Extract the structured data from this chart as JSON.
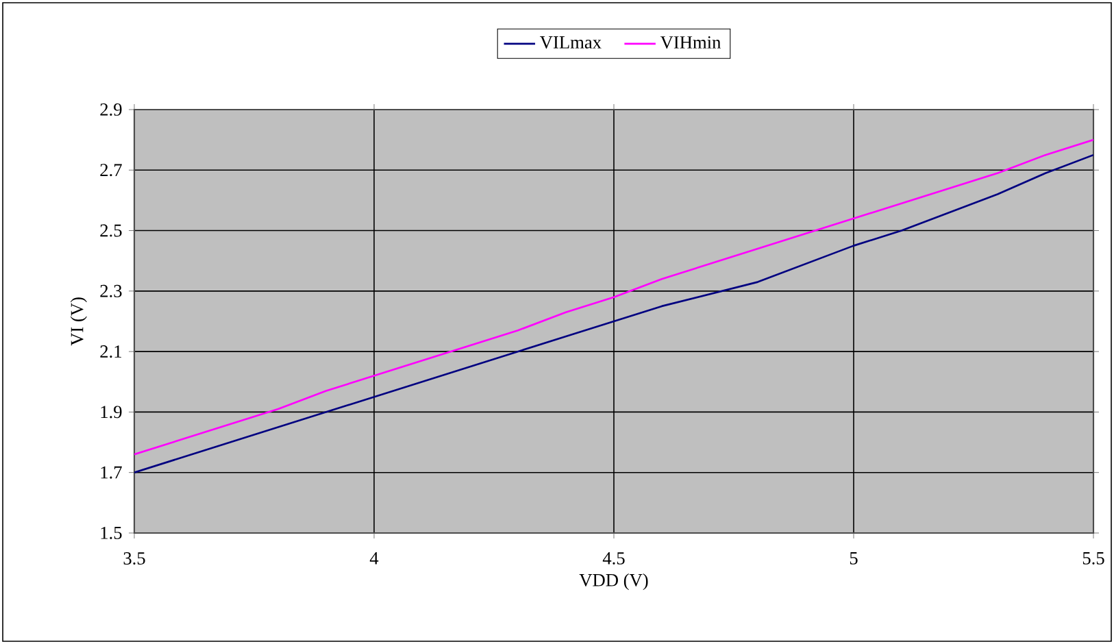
{
  "chart_data": {
    "type": "line",
    "xlabel": "VDD (V)",
    "ylabel": "VI (V)",
    "x": [
      3.5,
      3.6,
      3.7,
      3.8,
      3.9,
      4.0,
      4.1,
      4.2,
      4.3,
      4.4,
      4.5,
      4.6,
      4.7,
      4.8,
      4.9,
      5.0,
      5.1,
      5.2,
      5.3,
      5.4,
      5.5
    ],
    "series": [
      {
        "name": "VILmax",
        "color": "#000080",
        "values": [
          1.7,
          1.75,
          1.8,
          1.85,
          1.9,
          1.95,
          2.0,
          2.05,
          2.1,
          2.15,
          2.2,
          2.25,
          2.29,
          2.33,
          2.39,
          2.45,
          2.5,
          2.56,
          2.62,
          2.69,
          2.75
        ]
      },
      {
        "name": "VIHmin",
        "color": "#ff00ff",
        "values": [
          1.76,
          1.81,
          1.86,
          1.91,
          1.97,
          2.02,
          2.07,
          2.12,
          2.17,
          2.23,
          2.28,
          2.34,
          2.39,
          2.44,
          2.49,
          2.54,
          2.59,
          2.64,
          2.69,
          2.75,
          2.8
        ]
      }
    ],
    "xlim": [
      3.5,
      5.5
    ],
    "xticks": [
      3.5,
      4,
      4.5,
      5,
      5.5
    ],
    "ylim": [
      1.5,
      2.9
    ],
    "yticks": [
      1.5,
      1.7,
      1.9,
      2.1,
      2.3,
      2.5,
      2.7,
      2.9
    ],
    "grid": true,
    "legend": "top",
    "marker": "none",
    "line_style": "solid"
  }
}
